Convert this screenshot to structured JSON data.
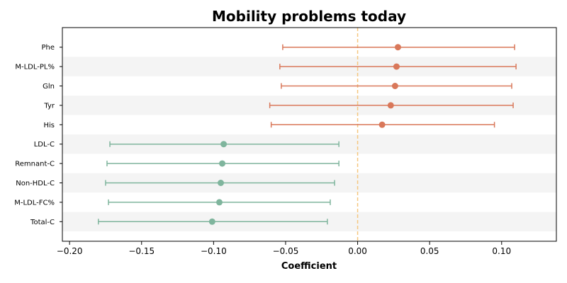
{
  "chart_data": {
    "type": "forest",
    "title": "Mobility problems today",
    "xlabel": "Coefficient",
    "ylabel": "",
    "xlim": [
      -0.205,
      0.138
    ],
    "xticks": [
      -0.2,
      -0.15,
      -0.1,
      -0.05,
      0.0,
      0.05,
      0.1
    ],
    "xtick_labels": [
      "−0.20",
      "−0.15",
      "−0.10",
      "−0.05",
      "0.00",
      "0.05",
      "0.10"
    ],
    "reference_line": 0.0,
    "reference_line_color": "#f5c77e",
    "band_color": "#f4f4f4",
    "grid": false,
    "series": [
      {
        "color": "#d9785a",
        "items": [
          {
            "label": "Phe",
            "estimate": 0.028,
            "lower": -0.052,
            "upper": 0.109
          },
          {
            "label": "M-LDL-PL%",
            "estimate": 0.027,
            "lower": -0.054,
            "upper": 0.11
          },
          {
            "label": "Gln",
            "estimate": 0.026,
            "lower": -0.053,
            "upper": 0.107
          },
          {
            "label": "Tyr",
            "estimate": 0.023,
            "lower": -0.061,
            "upper": 0.108
          },
          {
            "label": "His",
            "estimate": 0.017,
            "lower": -0.06,
            "upper": 0.095
          }
        ]
      },
      {
        "color": "#7fb59d",
        "items": [
          {
            "label": "LDL-C",
            "estimate": -0.093,
            "lower": -0.172,
            "upper": -0.013
          },
          {
            "label": "Remnant-C",
            "estimate": -0.094,
            "lower": -0.174,
            "upper": -0.013
          },
          {
            "label": "Non-HDL-C",
            "estimate": -0.095,
            "lower": -0.175,
            "upper": -0.016
          },
          {
            "label": "M-LDL-FC%",
            "estimate": -0.096,
            "lower": -0.173,
            "upper": -0.019
          },
          {
            "label": "Total-C",
            "estimate": -0.101,
            "lower": -0.18,
            "upper": -0.021
          }
        ]
      }
    ]
  }
}
